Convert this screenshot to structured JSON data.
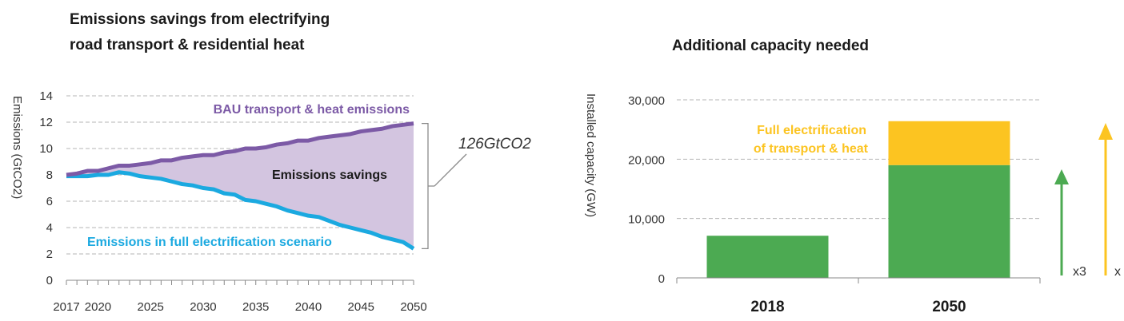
{
  "colors": {
    "bau": "#7c5aa6",
    "electrification_line": "#1ba9e0",
    "savings_fill": "#d3c5e0",
    "bar_green": "#4caa52",
    "bar_yellow": "#fcc421",
    "grid": "#b5b5b5",
    "axis": "#8a8a8a",
    "bracket": "#8a8a8a"
  },
  "chart_data": [
    {
      "type": "area",
      "title_lines": [
        "Emissions savings from electrifying",
        "road transport & residential heat"
      ],
      "ylabel": "Emissions (GtCO2)",
      "xlabel": "",
      "ylim": [
        0,
        14
      ],
      "yticks": [
        0,
        2,
        4,
        6,
        8,
        10,
        12,
        14
      ],
      "xlim": [
        2017,
        2050
      ],
      "xticks": [
        2017,
        2020,
        2025,
        2030,
        2035,
        2040,
        2045,
        2050
      ],
      "grid": true,
      "series": [
        {
          "name": "BAU transport & heat emissions",
          "x": [
            2017,
            2018,
            2019,
            2020,
            2021,
            2022,
            2023,
            2024,
            2025,
            2026,
            2027,
            2028,
            2029,
            2030,
            2031,
            2032,
            2033,
            2034,
            2035,
            2036,
            2037,
            2038,
            2039,
            2040,
            2041,
            2042,
            2043,
            2044,
            2045,
            2046,
            2047,
            2048,
            2049,
            2050
          ],
          "values": [
            8.0,
            8.1,
            8.3,
            8.3,
            8.5,
            8.7,
            8.7,
            8.8,
            8.9,
            9.1,
            9.1,
            9.3,
            9.4,
            9.5,
            9.5,
            9.7,
            9.8,
            10.0,
            10.0,
            10.1,
            10.3,
            10.4,
            10.6,
            10.6,
            10.8,
            10.9,
            11.0,
            11.1,
            11.3,
            11.4,
            11.5,
            11.7,
            11.8,
            11.9
          ]
        },
        {
          "name": "Emissions in full electrification scenario",
          "x": [
            2017,
            2018,
            2019,
            2020,
            2021,
            2022,
            2023,
            2024,
            2025,
            2026,
            2027,
            2028,
            2029,
            2030,
            2031,
            2032,
            2033,
            2034,
            2035,
            2036,
            2037,
            2038,
            2039,
            2040,
            2041,
            2042,
            2043,
            2044,
            2045,
            2046,
            2047,
            2048,
            2049,
            2050
          ],
          "values": [
            7.9,
            7.9,
            7.9,
            8.0,
            8.0,
            8.2,
            8.1,
            7.9,
            7.8,
            7.7,
            7.5,
            7.3,
            7.2,
            7.0,
            6.9,
            6.6,
            6.5,
            6.1,
            6.0,
            5.8,
            5.6,
            5.3,
            5.1,
            4.9,
            4.8,
            4.5,
            4.2,
            4.0,
            3.8,
            3.6,
            3.3,
            3.1,
            2.9,
            2.4
          ]
        }
      ],
      "annotations": {
        "bau_label": "BAU transport & heat emissions",
        "savings_label": "Emissions savings",
        "electrification_label": "Emissions in full electrification scenario",
        "bracket_label": "126GtCO2"
      }
    },
    {
      "type": "bar",
      "stacked": true,
      "title": "Additional capacity needed",
      "ylabel": "Installed capacity (GW)",
      "xlabel": "",
      "ylim": [
        0,
        30000
      ],
      "yticks": [
        0,
        10000,
        20000,
        30000
      ],
      "ytick_labels": [
        "0",
        "10,000",
        "20,000",
        "30,000"
      ],
      "grid": true,
      "categories": [
        "2018",
        "2050"
      ],
      "series": [
        {
          "values": [
            7100,
            19000
          ]
        },
        {
          "name": "Full electrification of transport & heat",
          "values": [
            0,
            7400
          ]
        }
      ],
      "annotations": {
        "segment_label_lines": [
          "Full electrification",
          "of transport & heat"
        ],
        "green_multiplier": "x3",
        "yellow_multiplier": "x"
      }
    }
  ]
}
